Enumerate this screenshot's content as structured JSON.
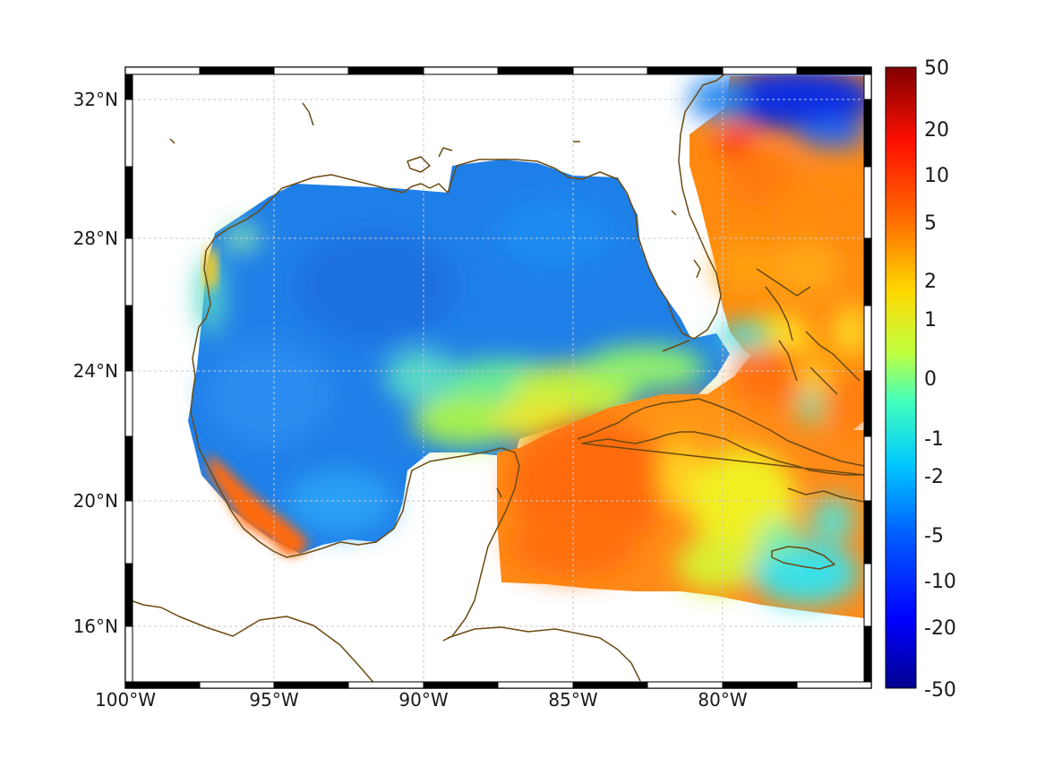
{
  "map": {
    "projection": "mercator",
    "lon_range": [
      -100,
      -75
    ],
    "lat_range": [
      14.2,
      33
    ],
    "grid": true,
    "x_ticks": [
      "100°W",
      "95°W",
      "90°W",
      "85°W",
      "80°W"
    ],
    "y_ticks": [
      "32°N",
      "28°N",
      "24°N",
      "20°N",
      "16°N"
    ],
    "colors": {
      "coastline": "#6b4a12",
      "grid": "#c8c8c8",
      "frame_dark": "#000000",
      "frame_light": "#ffffff"
    }
  },
  "colorbar": {
    "colormap": "jet",
    "labels": [
      "50",
      "20",
      "10",
      "5",
      "2",
      "1",
      "0",
      "-1",
      "-2",
      "-5",
      "-10",
      "-20",
      "-50"
    ]
  },
  "field_summary": {
    "gulf_of_mexico_interior": "blue (about -5)",
    "florida_straits": "cyan to yellow (about -1 to 1)",
    "atlantic_east_of_florida": "orange (about 5 to 10)",
    "caribbean_west": "orange (about 5 to 10)",
    "western_gulf_shelf_mexico": "red-orange (about 10 to 20)",
    "north_atlantic_corner": "dark blue (about -10 to -20)"
  }
}
